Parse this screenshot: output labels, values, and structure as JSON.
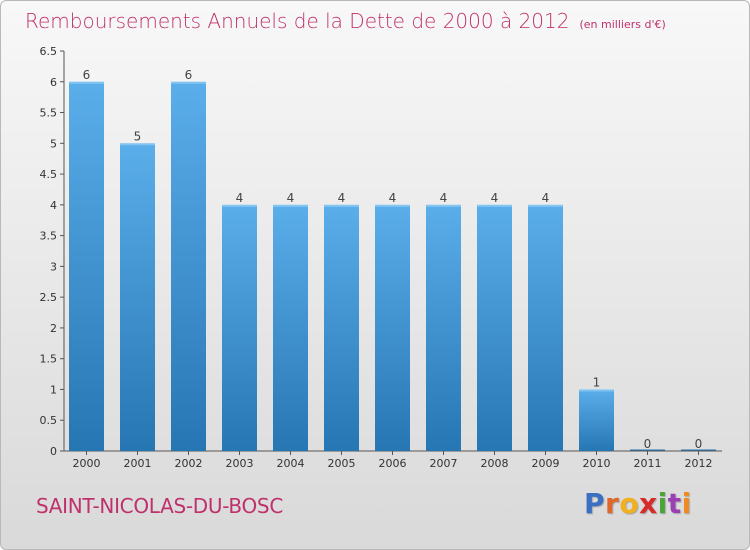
{
  "header": {
    "title": "Remboursements Annuels de la Dette de 2000 à 2012",
    "unit": "(en milliers d'€)"
  },
  "footer": {
    "commune": "SAINT-NICOLAS-DU-BOSC",
    "logo_letters": [
      "P",
      "r",
      "o",
      "x",
      "i",
      "t",
      "i"
    ],
    "logo_colors": [
      "#3a6fc4",
      "#e0662a",
      "#f2b01e",
      "#d92a2a",
      "#4aa43a",
      "#9b3fb5",
      "#f08a24"
    ]
  },
  "colors": {
    "bar_top": "#5aaeea",
    "bar_bottom": "#2776b4",
    "title": "#c0306c"
  },
  "chart_data": {
    "type": "bar",
    "title": "Remboursements Annuels de la Dette de 2000 à 2012",
    "xlabel": "",
    "ylabel": "",
    "categories": [
      "2000",
      "2001",
      "2002",
      "2003",
      "2004",
      "2005",
      "2006",
      "2007",
      "2008",
      "2009",
      "2010",
      "2011",
      "2012"
    ],
    "values": [
      6,
      5,
      6,
      4,
      4,
      4,
      4,
      4,
      4,
      4,
      1,
      0,
      0
    ],
    "value_labels": [
      "6",
      "5",
      "6",
      "4",
      "4",
      "4",
      "4",
      "4",
      "4",
      "4",
      "1",
      "0",
      "0"
    ],
    "ylim": [
      0,
      6.5
    ],
    "yticks": [
      0,
      0.5,
      1,
      1.5,
      2,
      2.5,
      3,
      3.5,
      4,
      4.5,
      5,
      5.5,
      6,
      6.5
    ],
    "ytick_labels": [
      "0",
      "0.5",
      "1",
      "1.5",
      "2",
      "2.5",
      "3",
      "3.5",
      "4",
      "4.5",
      "5",
      "5.5",
      "6",
      "6.5"
    ],
    "grid": false,
    "legend": "none"
  }
}
